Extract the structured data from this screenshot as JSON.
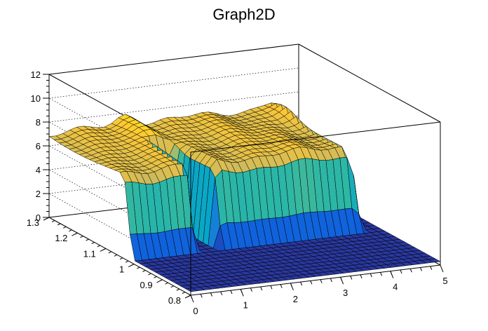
{
  "chart_data": {
    "type": "surface",
    "title": "Graph2D",
    "xlabel": "",
    "ylabel": "",
    "zlabel": "",
    "xlim": [
      0,
      5
    ],
    "ylim": [
      0.8,
      1.3
    ],
    "zlim": [
      0,
      12
    ],
    "x_ticks": [
      "0",
      "1",
      "2",
      "3",
      "4",
      "5"
    ],
    "y_ticks": [
      "0.8",
      "0.9",
      "1",
      "1.1",
      "1.2",
      "1.3"
    ],
    "z_ticks": [
      "0",
      "2",
      "4",
      "6",
      "8",
      "10",
      "12"
    ],
    "grid": true,
    "palette": "kBird",
    "colors": [
      "#352a87",
      "#0f5cdd",
      "#1481d6",
      "#06a4ca",
      "#2eb7a4",
      "#87bf77",
      "#d1bb59",
      "#fec832",
      "#f9fb0e"
    ],
    "surface_description": {
      "floor_value": 0.3,
      "plateau_value": 7.0,
      "plateau_region": {
        "x_max": 4.6,
        "y_min": 1.02
      },
      "gap_region": {
        "x_min": 1.35,
        "x_max": 1.75,
        "value": 0.3
      },
      "ridge": {
        "x_center": 1.55,
        "peak_value": 7.9
      },
      "bump": {
        "x": 4.5,
        "y": 1.25,
        "peak_value": 7.9
      }
    }
  }
}
